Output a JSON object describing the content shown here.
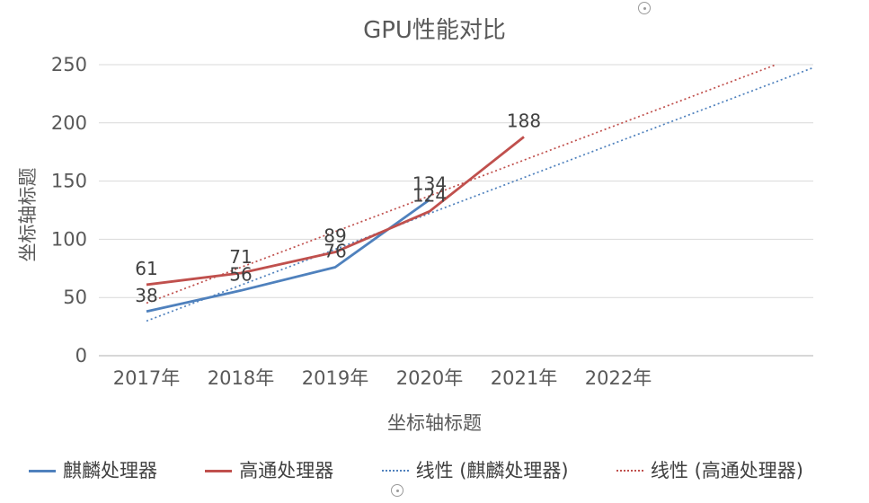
{
  "title": "GPU性能对比",
  "axes": {
    "y_title": "坐标轴标题",
    "x_title": "坐标轴标题"
  },
  "colors": {
    "series_kirin": "#4F81BD",
    "series_qualcomm": "#C0504D",
    "gridline": "#D9D9D9",
    "axis_line": "#BFBFBF",
    "axis_text": "#595959",
    "title_text": "#595959",
    "data_label": "#404040",
    "legend_text": "#404040"
  },
  "legend": {
    "items": [
      {
        "label": "麒麟处理器",
        "color": "#4F81BD",
        "dash": false
      },
      {
        "label": "高通处理器",
        "color": "#C0504D",
        "dash": false
      },
      {
        "label": "线性 (麒麟处理器)",
        "color": "#4F81BD",
        "dash": true
      },
      {
        "label": "线性 (高通处理器)",
        "color": "#C0504D",
        "dash": true
      }
    ]
  },
  "chart_data": {
    "type": "line",
    "title": "GPU性能对比",
    "xlabel": "坐标轴标题",
    "ylabel": "坐标轴标题",
    "categories": [
      "2017年",
      "2018年",
      "2019年",
      "2020年",
      "2021年",
      "2022年"
    ],
    "series": [
      {
        "name": "麒麟处理器",
        "color": "#4F81BD",
        "values": [
          38,
          56,
          76,
          134
        ],
        "data_labels": [
          38,
          56,
          76,
          134
        ]
      },
      {
        "name": "高通处理器",
        "color": "#C0504D",
        "values": [
          61,
          71,
          89,
          124,
          188
        ],
        "data_labels": [
          61,
          71,
          89,
          124,
          188
        ]
      }
    ],
    "trendlines": [
      {
        "name": "线性 (麒麟处理器)",
        "series": "麒麟处理器",
        "color": "#4F81BD",
        "style": "dotted"
      },
      {
        "name": "线性 (高通处理器)",
        "series": "高通处理器",
        "color": "#C0504D",
        "style": "dotted"
      }
    ],
    "ylim": [
      0,
      250
    ],
    "yticks": [
      0,
      50,
      100,
      150,
      200,
      250
    ],
    "grid": true,
    "legend_position": "bottom"
  }
}
